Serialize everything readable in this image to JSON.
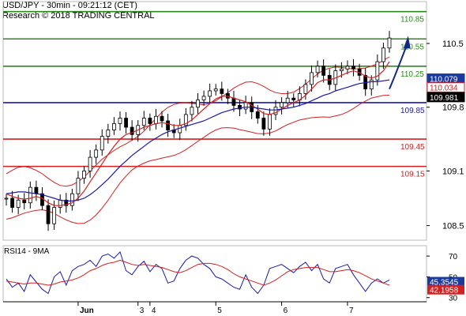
{
  "header": {
    "line1": "USD/JPY - 30min - 09:21:12 (CET)",
    "line2": "Research © 2018 TRADING CENTRAL"
  },
  "chart_data": [
    {
      "type": "candlestick",
      "ylim": [
        108.34,
        110.96
      ],
      "y_ticks": [
        110.5,
        109.8,
        109.1,
        108.5
      ],
      "y_tick_labels": [
        "110.5",
        "109.8",
        "109.1",
        "108.5"
      ],
      "x_ticks": [
        {
          "label": "Jun",
          "index": 12
        },
        {
          "label": "3",
          "index": 22
        },
        {
          "label": "4",
          "index": 24
        },
        {
          "label": "5",
          "index": 35
        },
        {
          "label": "6",
          "index": 46
        },
        {
          "label": "7",
          "index": 57
        }
      ],
      "levels": [
        {
          "value": 110.85,
          "label": "110.85",
          "color": "#2b8a1e"
        },
        {
          "value": 110.55,
          "label": "110.55",
          "color": "#2b8a1e"
        },
        {
          "value": 110.25,
          "label": "110.25",
          "color": "#2b8a1e"
        },
        {
          "value": 109.85,
          "label": "109.85",
          "color": "#1a1aa8"
        },
        {
          "value": 109.45,
          "label": "109.45",
          "color": "#d42020"
        },
        {
          "value": 109.15,
          "label": "109.15",
          "color": "#d42020"
        }
      ],
      "price_tags": [
        {
          "value": 110.079,
          "label": "110.079",
          "bg": "#1a3aa0",
          "fg": "#ffffff"
        },
        {
          "value": 110.034,
          "label": "110.034",
          "bg": "#ffffff",
          "fg": "#d42020"
        },
        {
          "value": 109.981,
          "label": "109.981",
          "bg": "#000000",
          "fg": "#ffffff"
        }
      ],
      "close": [
        108.8,
        108.7,
        108.78,
        108.75,
        108.92,
        108.85,
        108.72,
        108.52,
        108.7,
        108.78,
        108.72,
        108.85,
        109.02,
        109.1,
        109.25,
        109.33,
        109.48,
        109.55,
        109.62,
        109.68,
        109.58,
        109.5,
        109.6,
        109.68,
        109.62,
        109.7,
        109.65,
        109.55,
        109.52,
        109.6,
        109.72,
        109.8,
        109.88,
        109.92,
        109.98,
        110.0,
        109.95,
        109.9,
        109.82,
        109.78,
        109.85,
        109.75,
        109.68,
        109.56,
        109.72,
        109.8,
        109.85,
        109.9,
        109.88,
        109.95,
        110.05,
        110.18,
        110.25,
        110.15,
        110.05,
        110.2,
        110.22,
        110.25,
        110.22,
        110.15,
        110.0,
        110.1,
        110.3,
        110.45,
        110.56
      ],
      "ma_fast": [
        108.85,
        108.82,
        108.8,
        108.79,
        108.8,
        108.82,
        108.8,
        108.75,
        108.72,
        108.72,
        108.73,
        108.75,
        108.8,
        108.88,
        108.98,
        109.08,
        109.18,
        109.28,
        109.37,
        109.45,
        109.5,
        109.52,
        109.55,
        109.58,
        109.6,
        109.62,
        109.63,
        109.62,
        109.6,
        109.6,
        109.62,
        109.66,
        109.72,
        109.78,
        109.84,
        109.89,
        109.92,
        109.92,
        109.9,
        109.88,
        109.86,
        109.82,
        109.78,
        109.73,
        109.72,
        109.74,
        109.78,
        109.82,
        109.85,
        109.88,
        109.93,
        110.0,
        110.07,
        110.1,
        110.1,
        110.12,
        110.15,
        110.18,
        110.2,
        110.18,
        110.14,
        110.12,
        110.14,
        110.2,
        110.3
      ],
      "ma_slow": [
        108.85,
        108.86,
        108.87,
        108.87,
        108.86,
        108.85,
        108.84,
        108.82,
        108.8,
        108.78,
        108.77,
        108.77,
        108.78,
        108.8,
        108.84,
        108.89,
        108.95,
        109.01,
        109.08,
        109.15,
        109.21,
        109.27,
        109.32,
        109.37,
        109.42,
        109.46,
        109.5,
        109.53,
        109.55,
        109.57,
        109.59,
        109.61,
        109.63,
        109.65,
        109.68,
        109.71,
        109.74,
        109.76,
        109.78,
        109.79,
        109.8,
        109.8,
        109.79,
        109.78,
        109.77,
        109.77,
        109.78,
        109.79,
        109.8,
        109.82,
        109.84,
        109.87,
        109.9,
        109.93,
        109.95,
        109.98,
        110.0,
        110.02,
        110.04,
        110.06,
        110.07,
        110.08,
        110.08,
        110.09,
        110.1
      ],
      "projection": {
        "from_index": 64,
        "from_value": 110.0,
        "to_index": 67,
        "to_value": 110.55
      }
    },
    {
      "type": "line",
      "title": "RSI14 - 9MA",
      "ylim": [
        26,
        80
      ],
      "y_ticks": [
        70,
        50,
        30
      ],
      "y_tick_labels": [
        "70",
        "50",
        "30"
      ],
      "series": [
        {
          "name": "RSI14",
          "color": "#1a1aa8",
          "values": [
            48,
            40,
            44,
            36,
            52,
            45,
            38,
            34,
            50,
            55,
            42,
            56,
            60,
            62,
            66,
            60,
            70,
            72,
            68,
            74,
            56,
            52,
            60,
            65,
            55,
            62,
            58,
            44,
            46,
            58,
            66,
            70,
            68,
            62,
            58,
            50,
            48,
            44,
            40,
            38,
            52,
            40,
            34,
            42,
            58,
            60,
            62,
            58,
            54,
            60,
            64,
            56,
            62,
            48,
            44,
            58,
            60,
            62,
            52,
            44,
            36,
            44,
            48,
            44,
            47
          ]
        },
        {
          "name": "9MA",
          "color": "#d42020",
          "values": [
            46,
            45,
            44,
            43,
            44,
            44,
            43,
            42,
            43,
            45,
            46,
            47,
            49,
            52,
            56,
            58,
            61,
            63,
            64,
            66,
            64,
            62,
            61,
            62,
            61,
            60,
            59,
            57,
            55,
            54,
            56,
            59,
            62,
            63,
            63,
            62,
            60,
            57,
            53,
            50,
            48,
            46,
            44,
            42,
            44,
            47,
            51,
            55,
            57,
            58,
            59,
            59,
            59,
            57,
            55,
            55,
            56,
            57,
            56,
            54,
            51,
            48,
            46,
            44,
            42
          ]
        }
      ],
      "value_tags": [
        {
          "value": 45.3545,
          "label": "45.3545",
          "bg": "#1a3aa0",
          "fg": "#ffffff"
        },
        {
          "value": 42.1958,
          "label": "42.1958",
          "bg": "#d42020",
          "fg": "#ffffff"
        }
      ]
    }
  ]
}
